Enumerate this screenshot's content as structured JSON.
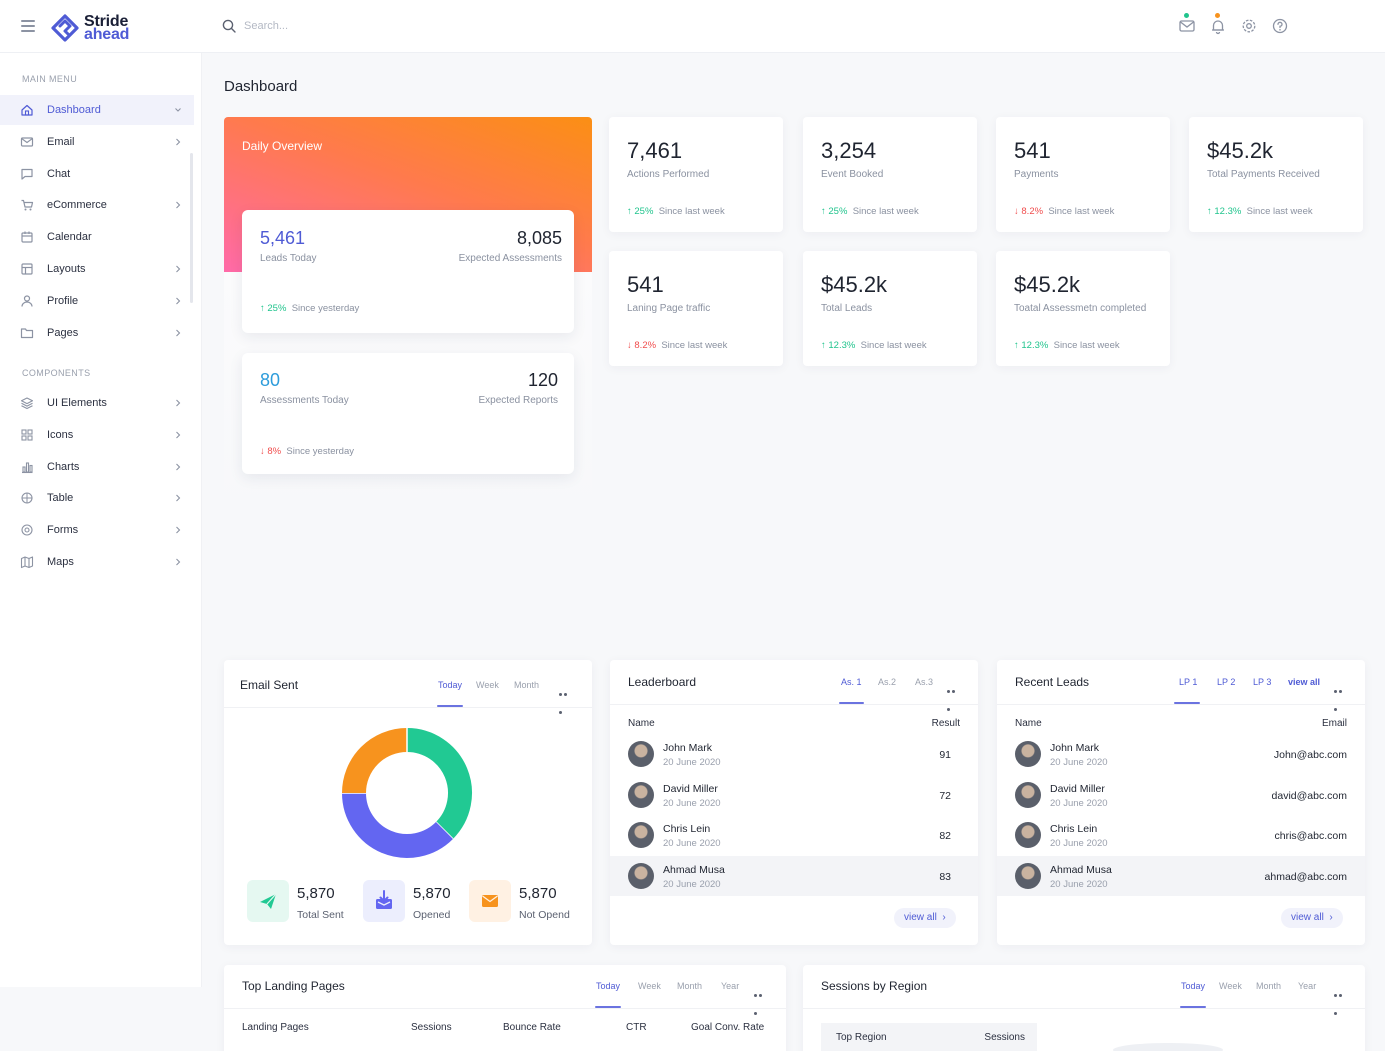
{
  "app": {
    "logo_line1": "Stride",
    "logo_line2": "ahead"
  },
  "header": {
    "search_placeholder": "Search..."
  },
  "sidebar": {
    "main_menu_title": "MAIN MENU",
    "main_items": [
      {
        "label": "Dashboard",
        "icon": "home-icon"
      },
      {
        "label": "Email",
        "icon": "mail-icon"
      },
      {
        "label": "Chat",
        "icon": "chat-icon"
      },
      {
        "label": "eCommerce",
        "icon": "cart-icon"
      },
      {
        "label": "Calendar",
        "icon": "calendar-icon"
      },
      {
        "label": "Layouts",
        "icon": "layout-icon"
      },
      {
        "label": "Profile",
        "icon": "user-icon"
      },
      {
        "label": "Pages",
        "icon": "folder-icon"
      }
    ],
    "components_title": "COMPONENTS",
    "component_items": [
      {
        "label": "UI Elements",
        "icon": "layers-icon"
      },
      {
        "label": "Icons",
        "icon": "grid-icon"
      },
      {
        "label": "Charts",
        "icon": "bar-chart-icon"
      },
      {
        "label": "Table",
        "icon": "table-icon"
      },
      {
        "label": "Forms",
        "icon": "target-icon"
      },
      {
        "label": "Maps",
        "icon": "map-icon"
      }
    ]
  },
  "page": {
    "title": "Dashboard"
  },
  "overview": {
    "title": "Daily Overview",
    "card1": {
      "left_value": "5,461",
      "left_label": "Leads Today",
      "right_value": "8,085",
      "right_label": "Expected Assessments",
      "trend_arrow": "↑",
      "trend_value": "25%",
      "trend_text": "Since yesterday"
    },
    "card2": {
      "left_value": "80",
      "left_label": "Assessments Today",
      "right_value": "120",
      "right_label": "Expected Reports",
      "trend_arrow": "↓",
      "trend_value": "8%",
      "trend_text": "Since yesterday"
    }
  },
  "stats": [
    {
      "value": "7,461",
      "label": "Actions Performed",
      "arrow": "↑",
      "change": "25%",
      "direction": "up",
      "note": "Since last week"
    },
    {
      "value": "3,254",
      "label": "Event Booked",
      "arrow": "↑",
      "change": "25%",
      "direction": "up",
      "note": "Since last week"
    },
    {
      "value": "541",
      "label": "Payments",
      "arrow": "↓",
      "change": "8.2%",
      "direction": "down",
      "note": "Since last week"
    },
    {
      "value": "$45.2k",
      "label": "Total Payments Received",
      "arrow": "↑",
      "change": "12.3%",
      "direction": "up",
      "note": "Since last week"
    },
    {
      "value": "541",
      "label": "Laning Page traffic",
      "arrow": "↓",
      "change": "8.2%",
      "direction": "down",
      "note": "Since last week"
    },
    {
      "value": "$45.2k",
      "label": "Total Leads",
      "arrow": "↑",
      "change": "12.3%",
      "direction": "up",
      "note": "Since last week"
    },
    {
      "value": "$45.2k",
      "label": "Toatal Assessmetn completed",
      "arrow": "↑",
      "change": "12.3%",
      "direction": "up",
      "note": "Since last week"
    }
  ],
  "email_sent": {
    "title": "Email Sent",
    "tabs": [
      "Today",
      "Week",
      "Month"
    ],
    "active_tab": "Today",
    "donut": [
      {
        "name": "green",
        "value": 0.375,
        "color": "#21c993"
      },
      {
        "name": "blue",
        "value": 0.375,
        "color": "#6366f1"
      },
      {
        "name": "orange",
        "value": 0.25,
        "color": "#f7931e"
      }
    ],
    "items": [
      {
        "value": "5,870",
        "label": "Total Sent",
        "icon": "send-icon"
      },
      {
        "value": "5,870",
        "label": "Opened",
        "icon": "inbox-icon"
      },
      {
        "value": "5,870",
        "label": "Not Opend",
        "icon": "envelope-icon"
      }
    ]
  },
  "leaderboard": {
    "title": "Leaderboard",
    "tabs": [
      "As. 1",
      "As.2",
      "As.3"
    ],
    "active_tab": "As. 1",
    "col_name": "Name",
    "col_result": "Result",
    "rows": [
      {
        "name": "John Mark",
        "date": "20 June 2020",
        "result": "91"
      },
      {
        "name": "David Miller",
        "date": "20 June 2020",
        "result": "72"
      },
      {
        "name": "Chris Lein",
        "date": "20 June 2020",
        "result": "82"
      },
      {
        "name": "Ahmad Musa",
        "date": "20 June 2020",
        "result": "83"
      }
    ],
    "view_all": "view all"
  },
  "recent_leads": {
    "title": "Recent Leads",
    "tabs": [
      "LP 1",
      "LP 2",
      "LP 3",
      "view all"
    ],
    "active_tab": "LP 1",
    "col_name": "Name",
    "col_email": "Email",
    "rows": [
      {
        "name": "John Mark",
        "date": "20 June 2020",
        "email": "John@abc.com"
      },
      {
        "name": "David Miller",
        "date": "20 June 2020",
        "email": "david@abc.com"
      },
      {
        "name": "Chris Lein",
        "date": "20 June 2020",
        "email": "chris@abc.com"
      },
      {
        "name": "Ahmad Musa",
        "date": "20 June 2020",
        "email": "ahmad@abc.com"
      }
    ],
    "view_all": "view all"
  },
  "landing_pages": {
    "title": "Top Landing Pages",
    "tabs": [
      "Today",
      "Week",
      "Month",
      "Year"
    ],
    "active_tab": "Today",
    "columns": [
      "Landing Pages",
      "Sessions",
      "Bounce Rate",
      "CTR",
      "Goal Conv. Rate"
    ]
  },
  "sessions": {
    "title": "Sessions by Region",
    "tabs": [
      "Today",
      "Week",
      "Month",
      "Year"
    ],
    "active_tab": "Today",
    "col_region": "Top Region",
    "col_sessions": "Sessions"
  },
  "colors": {
    "accent": "#4f5bd5",
    "up": "#21c48d",
    "down": "#f04e4e",
    "gradient_start": "#fb8f14",
    "gradient_end": "#ff6aa8"
  }
}
